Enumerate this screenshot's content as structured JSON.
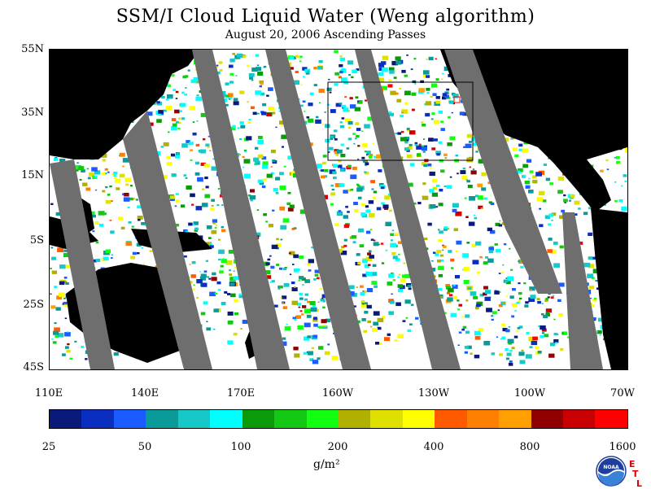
{
  "title": "SSM/I Cloud Liquid Water (Weng algorithm)",
  "subtitle": "August 20, 2006  Ascending Passes",
  "latitude_labels": [
    "55N",
    "35N",
    "15N",
    "5S",
    "25S",
    "45S"
  ],
  "longitude_labels": [
    "110E",
    "140E",
    "170E",
    "160W",
    "130W",
    "100W",
    "70W"
  ],
  "colorbar": {
    "labels": [
      "25",
      "50",
      "100",
      "200",
      "400",
      "800",
      "1600"
    ],
    "units": "g/m²",
    "colors": [
      "#0a1a7a",
      "#0a2fc0",
      "#1a5cff",
      "#0a9a9a",
      "#17c8c8",
      "#00ffff",
      "#0a9a0a",
      "#12c812",
      "#12ff12",
      "#b0b000",
      "#e0e000",
      "#ffff00",
      "#ff5a00",
      "#ff8000",
      "#ffa000",
      "#900000",
      "#c80000",
      "#ff0000"
    ]
  },
  "map_colors": {
    "land": "#000000",
    "no_data": "#6e6e6e",
    "clear": "#ffffff"
  },
  "logo": {
    "noaa_text": "NOAA",
    "etl_letters": [
      "E",
      "T",
      "L"
    ]
  }
}
